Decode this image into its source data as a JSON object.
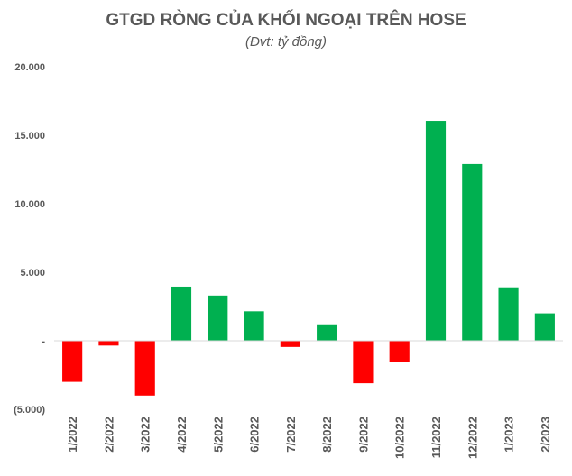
{
  "chart_data": {
    "type": "bar",
    "title": "GTGD RÒNG CỦA KHỐI NGOẠI TRÊN HOSE",
    "subtitle": "(Đvt: tỷ đồng)",
    "xlabel": "",
    "ylabel": "",
    "categories": [
      "1/2022",
      "2/2022",
      "3/2022",
      "4/2022",
      "5/2022",
      "6/2022",
      "7/2022",
      "8/2022",
      "9/2022",
      "10/2022",
      "11/2022",
      "12/2022",
      "1/2023",
      "2/2023"
    ],
    "values": [
      -3000,
      -350,
      -4000,
      3950,
      3300,
      2150,
      -450,
      1200,
      -3100,
      -1550,
      16050,
      12900,
      3900,
      2000
    ],
    "ylim": [
      -5000,
      20000
    ],
    "yticks": [
      20000,
      15000,
      10000,
      5000,
      0,
      -5000
    ],
    "ytick_labels": [
      "20.000",
      "15.000",
      "10.000",
      "5.000",
      "-",
      "(5.000)"
    ],
    "grid": false,
    "legend": "none",
    "colors": {
      "positive": "#00B050",
      "negative": "#FF0000",
      "axis": "#D9D9D9",
      "text": "#595959"
    }
  }
}
